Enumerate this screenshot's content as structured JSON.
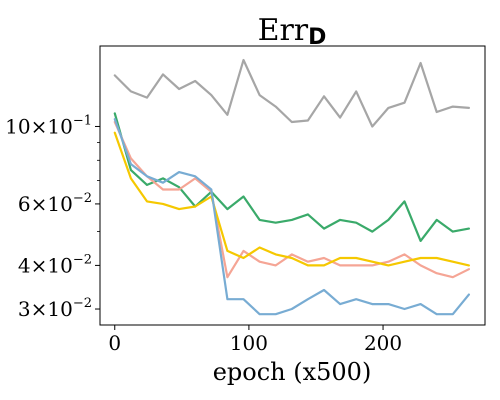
{
  "chart_data": {
    "type": "line",
    "title": "Err",
    "title_subscript": "D",
    "xlabel": "epoch (x500)",
    "ylabel": "",
    "yscale": "log",
    "xlim": [
      -11,
      276
    ],
    "ylim": [
      0.027,
      0.17
    ],
    "grid": false,
    "x_ticks": [
      0,
      100,
      200
    ],
    "x_tick_labels": [
      "0",
      "100",
      "200"
    ],
    "y_ticks": [
      0.03,
      0.04,
      0.06,
      0.1
    ],
    "y_tick_labels": [
      {
        "base": "3",
        "exp": "−2"
      },
      {
        "base": "4",
        "exp": "−2"
      },
      {
        "base": "6",
        "exp": "−2"
      },
      {
        "base": "10",
        "exp": "−1"
      }
    ],
    "x": [
      0,
      12,
      24,
      36,
      48,
      60,
      72,
      84,
      96,
      108,
      120,
      132,
      144,
      156,
      168,
      180,
      192,
      204,
      216,
      228,
      240,
      252,
      264
    ],
    "series": [
      {
        "color": "#a6a6a6",
        "values": [
          0.14,
          0.126,
          0.121,
          0.141,
          0.128,
          0.135,
          0.123,
          0.108,
          0.155,
          0.123,
          0.114,
          0.103,
          0.104,
          0.122,
          0.106,
          0.126,
          0.1,
          0.113,
          0.117,
          0.152,
          0.11,
          0.114,
          0.113
        ]
      },
      {
        "color": "#3aaa6a",
        "values": [
          0.109,
          0.075,
          0.068,
          0.071,
          0.067,
          0.059,
          0.065,
          0.058,
          0.063,
          0.054,
          0.053,
          0.054,
          0.056,
          0.051,
          0.054,
          0.053,
          0.05,
          0.054,
          0.061,
          0.047,
          0.054,
          0.05,
          0.051
        ]
      },
      {
        "color": "#f5a595",
        "values": [
          0.103,
          0.081,
          0.072,
          0.066,
          0.066,
          0.071,
          0.065,
          0.037,
          0.044,
          0.041,
          0.04,
          0.043,
          0.041,
          0.042,
          0.04,
          0.04,
          0.04,
          0.041,
          0.043,
          0.04,
          0.038,
          0.037,
          0.039
        ]
      },
      {
        "color": "#f5c800",
        "values": [
          0.096,
          0.071,
          0.061,
          0.06,
          0.058,
          0.059,
          0.063,
          0.044,
          0.042,
          0.045,
          0.043,
          0.042,
          0.04,
          0.04,
          0.042,
          0.042,
          0.041,
          0.04,
          0.041,
          0.042,
          0.042,
          0.041,
          0.04
        ]
      },
      {
        "color": "#78acd3",
        "values": [
          0.105,
          0.078,
          0.072,
          0.069,
          0.074,
          0.072,
          0.066,
          0.032,
          0.032,
          0.029,
          0.029,
          0.03,
          0.032,
          0.034,
          0.031,
          0.032,
          0.031,
          0.031,
          0.03,
          0.031,
          0.029,
          0.029,
          0.033
        ]
      }
    ]
  }
}
